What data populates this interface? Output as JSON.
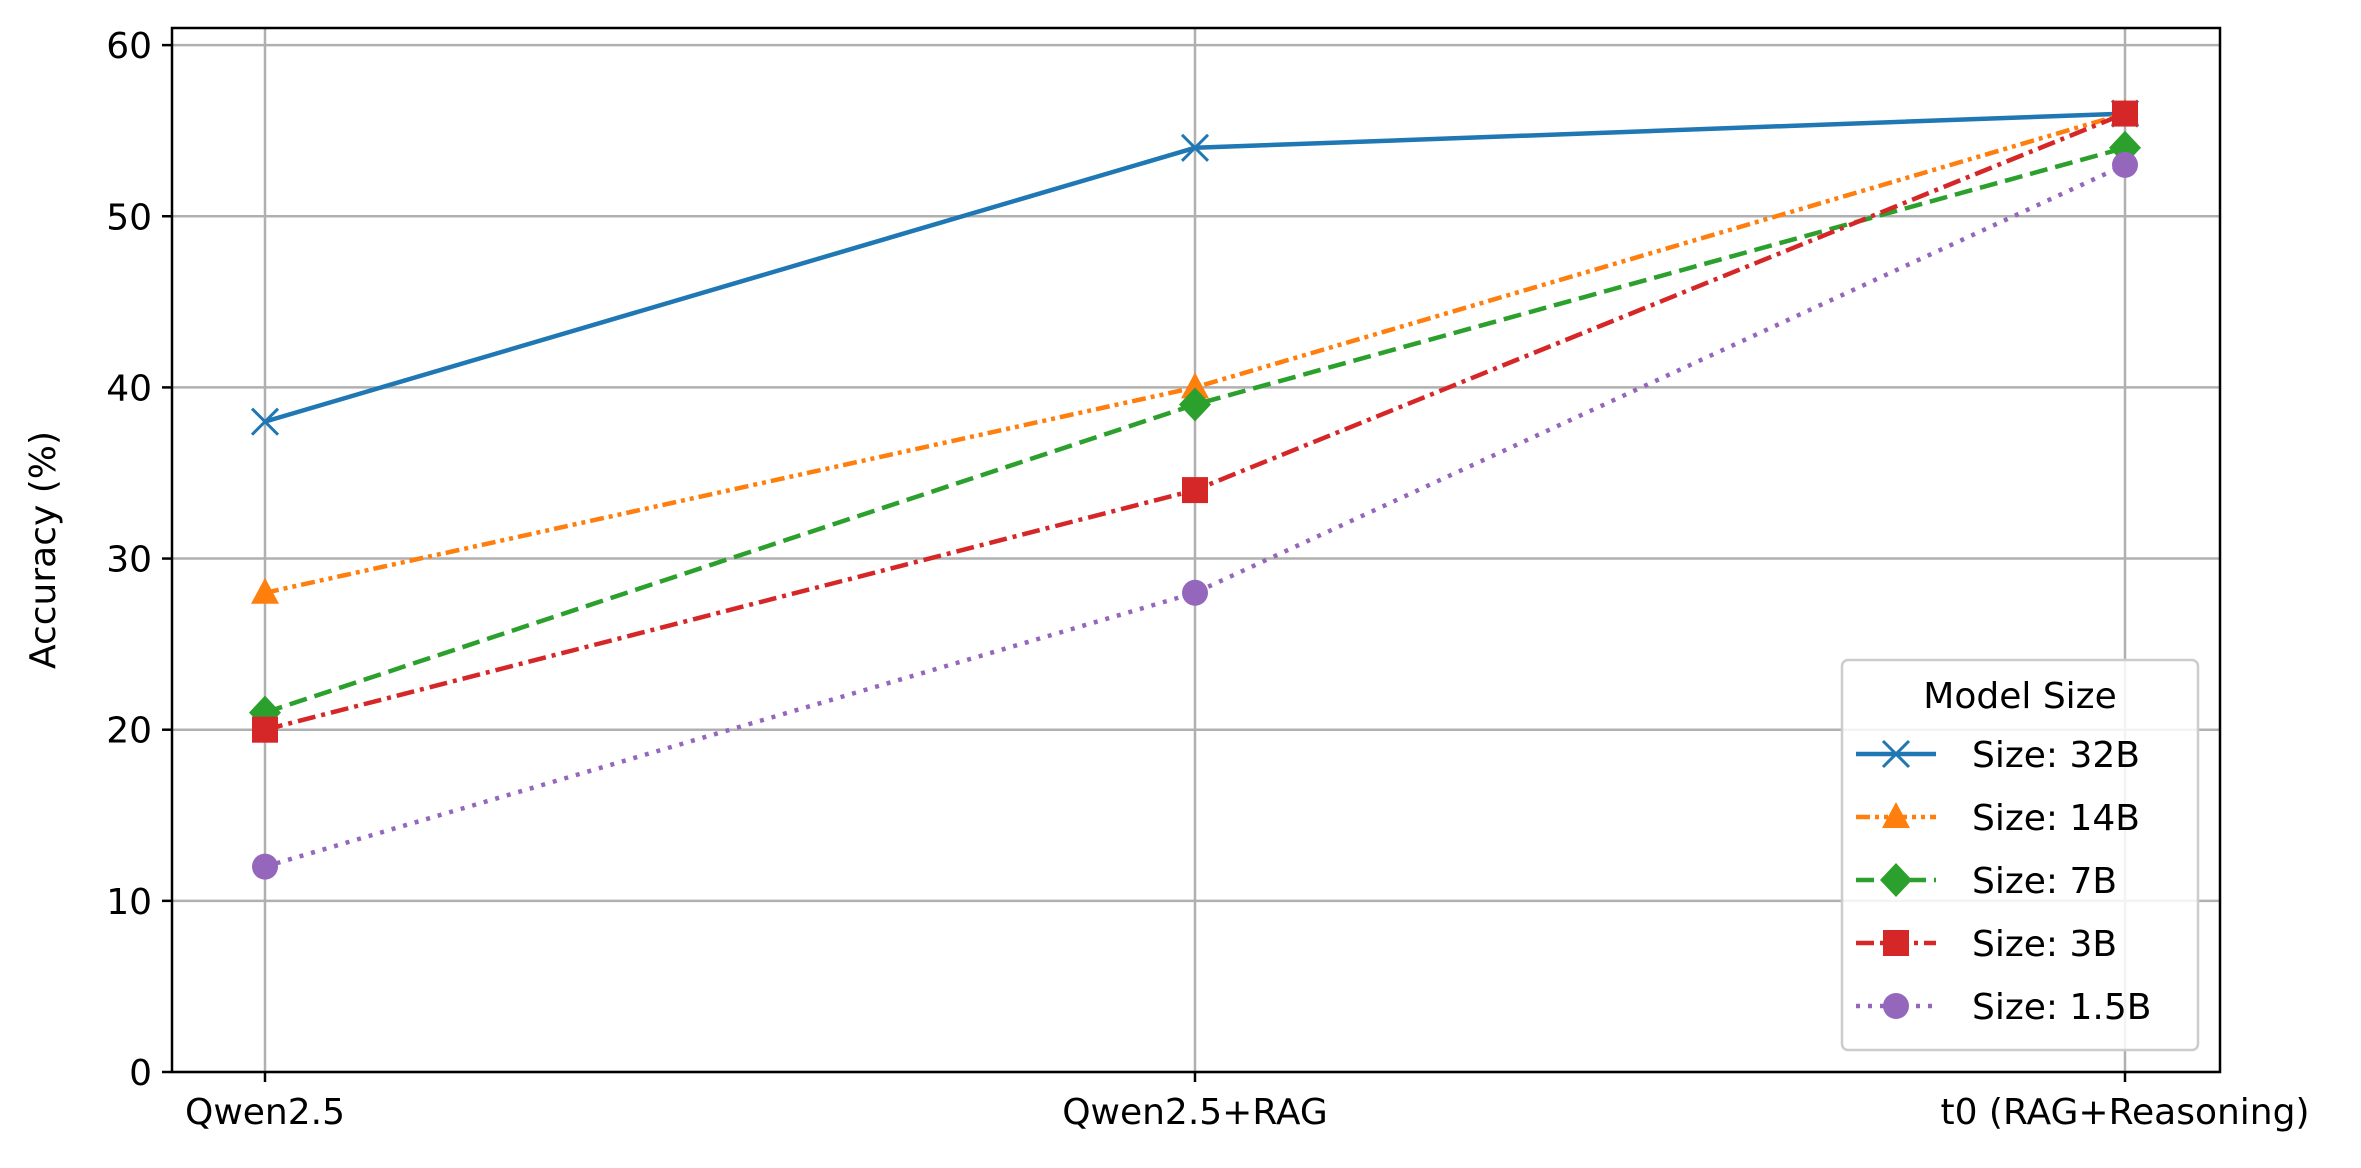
{
  "chart_data": {
    "type": "line",
    "title": "",
    "xlabel": "",
    "ylabel": "Accuracy (%)",
    "categories": [
      "Qwen2.5",
      "Qwen2.5+RAG",
      "t0 (RAG+Reasoning)"
    ],
    "ylim": [
      0,
      61
    ],
    "yticks": [
      0,
      10,
      20,
      30,
      40,
      50,
      60
    ],
    "grid": true,
    "legend": {
      "title": "Model Size",
      "placement": "lower-right"
    },
    "series": [
      {
        "name": "Size: 32B",
        "values": [
          38,
          54,
          56
        ],
        "color": "#1f77b4",
        "marker": "x",
        "dash": "solid"
      },
      {
        "name": "Size: 14B",
        "values": [
          28,
          40,
          56
        ],
        "color": "#ff7f0e",
        "marker": "triangle",
        "dash": "dashdotdot"
      },
      {
        "name": "Size: 7B",
        "values": [
          21,
          39,
          54
        ],
        "color": "#2ca02c",
        "marker": "diamond",
        "dash": "dashed"
      },
      {
        "name": "Size: 3B",
        "values": [
          20,
          34,
          56
        ],
        "color": "#d62728",
        "marker": "square",
        "dash": "dashdot"
      },
      {
        "name": "Size: 1.5B",
        "values": [
          12,
          28,
          53
        ],
        "color": "#9467bd",
        "marker": "circle",
        "dash": "dotted"
      }
    ]
  }
}
